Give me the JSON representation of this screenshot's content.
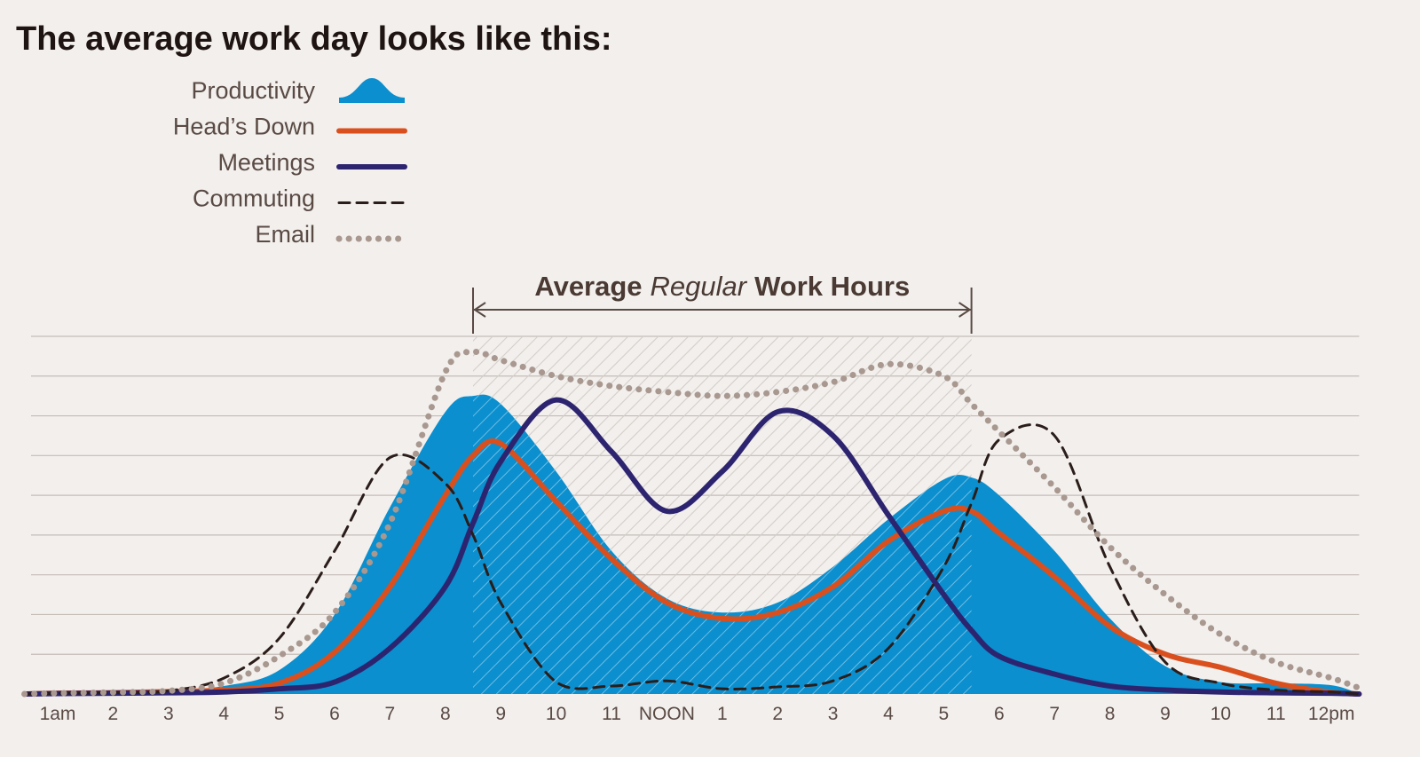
{
  "chart_data": {
    "type": "line",
    "title": "The average work day looks like this:",
    "x": [
      0.4,
      1,
      2,
      3,
      4,
      5,
      6,
      7,
      8,
      8.5,
      9,
      10,
      11,
      12,
      13,
      14,
      15,
      16,
      17,
      17.5,
      18,
      19,
      20,
      21,
      22,
      23,
      24,
      24.5
    ],
    "xlim": [
      0.4,
      24.5
    ],
    "xticks": [
      {
        "value": 1,
        "label": "1am"
      },
      2,
      3,
      4,
      5,
      6,
      7,
      8,
      9,
      10,
      11,
      {
        "value": 12,
        "label": "NOON"
      },
      {
        "value": 13,
        "label": "1"
      },
      {
        "value": 14,
        "label": "2"
      },
      {
        "value": 15,
        "label": "3"
      },
      {
        "value": 16,
        "label": "4"
      },
      {
        "value": 17,
        "label": "5"
      },
      {
        "value": 18,
        "label": "6"
      },
      {
        "value": 19,
        "label": "7"
      },
      {
        "value": 20,
        "label": "8"
      },
      {
        "value": 21,
        "label": "9"
      },
      {
        "value": 22,
        "label": "10"
      },
      {
        "value": 23,
        "label": "11"
      },
      {
        "value": 24,
        "label": "12pm"
      }
    ],
    "ylim": [
      0,
      9
    ],
    "yticks": [
      1,
      2,
      3,
      4,
      5,
      6,
      7,
      8,
      9
    ],
    "grid": true,
    "work_hours": {
      "start": 8.5,
      "end": 17.5,
      "label": [
        "Average",
        "Regular",
        "Work Hours"
      ]
    },
    "series": [
      {
        "name": "Productivity",
        "color": "#0b8fce",
        "kind": "area",
        "dash": "solid",
        "values": [
          0,
          0.02,
          0.04,
          0.08,
          0.2,
          0.6,
          2.0,
          4.7,
          7.1,
          7.5,
          7.3,
          5.6,
          3.6,
          2.4,
          2.05,
          2.3,
          3.2,
          4.4,
          5.4,
          5.45,
          5.0,
          3.6,
          1.9,
          0.7,
          0.3,
          0.27,
          0.22,
          0
        ]
      },
      {
        "name": "Head’s Down",
        "color": "#d9501e",
        "kind": "line",
        "dash": "solid",
        "values": [
          0,
          0.02,
          0.03,
          0.06,
          0.1,
          0.27,
          1.05,
          2.7,
          5.0,
          6.0,
          6.3,
          4.85,
          3.4,
          2.3,
          1.9,
          2.05,
          2.7,
          3.85,
          4.6,
          4.6,
          4.05,
          2.95,
          1.7,
          1.0,
          0.67,
          0.27,
          0.04,
          0
        ]
      },
      {
        "name": "Meetings",
        "color": "#2d2470",
        "kind": "line",
        "dash": "solid",
        "values": [
          0,
          0.01,
          0.02,
          0.03,
          0.05,
          0.13,
          0.3,
          1.15,
          2.7,
          4.3,
          5.85,
          7.4,
          6.1,
          4.6,
          5.6,
          7.1,
          6.5,
          4.5,
          2.5,
          1.6,
          0.95,
          0.5,
          0.2,
          0.1,
          0.05,
          0.03,
          0.02,
          0
        ]
      },
      {
        "name": "Commuting",
        "color": "#2a1d1a",
        "kind": "line",
        "dash": "dashed",
        "values": [
          0,
          0.02,
          0.03,
          0.08,
          0.4,
          1.4,
          3.6,
          5.95,
          5.3,
          4.0,
          2.3,
          0.3,
          0.2,
          0.33,
          0.13,
          0.18,
          0.33,
          1.15,
          3.2,
          4.8,
          6.4,
          6.5,
          3.2,
          0.8,
          0.27,
          0.1,
          0.05,
          0
        ]
      },
      {
        "name": "Email",
        "color": "#a89890",
        "kind": "line",
        "dash": "dotted",
        "values": [
          0,
          0.02,
          0.04,
          0.08,
          0.27,
          0.95,
          2.05,
          4.3,
          8.1,
          8.6,
          8.4,
          8.0,
          7.75,
          7.6,
          7.5,
          7.6,
          7.85,
          8.3,
          8.0,
          7.3,
          6.6,
          5.2,
          3.7,
          2.5,
          1.5,
          0.8,
          0.4,
          0.15
        ]
      }
    ]
  }
}
